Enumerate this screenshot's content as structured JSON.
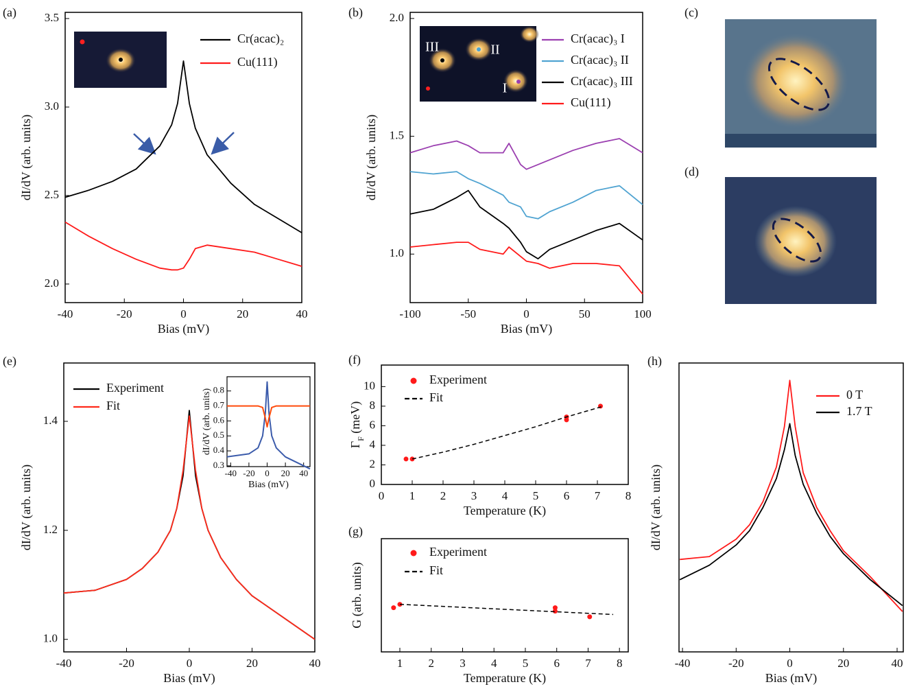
{
  "chart_data": [
    {
      "type": "line",
      "panel_label": "(a)",
      "xlabel": "Bias (mV)",
      "ylabel": "dI/dV (arb. units)",
      "xlim": [
        -40,
        40
      ],
      "ylim": [
        1.895,
        3.535
      ],
      "xticks": [
        -40,
        -20,
        0,
        20,
        40
      ],
      "yticks": [
        {
          "value": 2,
          "label": "2.0"
        },
        2.5,
        {
          "value": 3,
          "label": "3.0"
        },
        3.5
      ],
      "x": [
        -40,
        -32,
        -24,
        -16,
        -8,
        -4,
        -2,
        0,
        2,
        4,
        8,
        16,
        24,
        32,
        40
      ],
      "series": [
        {
          "name": "Cr(acac)₂",
          "color": "#000000",
          "values": [
            2.49,
            2.53,
            2.58,
            2.65,
            2.78,
            2.9,
            3.02,
            3.26,
            3.02,
            2.88,
            2.73,
            2.57,
            2.45,
            2.37,
            2.29
          ]
        },
        {
          "name": "Cu(111)",
          "color": "#ff1a1a",
          "values": [
            2.35,
            2.27,
            2.2,
            2.14,
            2.09,
            2.08,
            2.08,
            2.09,
            2.14,
            2.2,
            2.22,
            2.2,
            2.18,
            2.14,
            2.1
          ]
        }
      ]
    },
    {
      "type": "line",
      "panel_label": "(b)",
      "xlabel": "Bias (mV)",
      "ylabel": "dI/dV (arb. units)",
      "xlim": [
        -100,
        100
      ],
      "ylim": [
        0.794,
        2.026
      ],
      "xticks": [
        -100,
        -50,
        0,
        50,
        100
      ],
      "yticks": [
        {
          "value": 1,
          "label": "1.0"
        },
        1.5,
        {
          "value": 2,
          "label": "2.0"
        }
      ],
      "inset_labels": [
        "III",
        "II",
        "I"
      ],
      "x": [
        -100,
        -80,
        -60,
        -50,
        -40,
        -20,
        -15,
        -5,
        0,
        10,
        20,
        40,
        60,
        80,
        100
      ],
      "series": [
        {
          "name": "Cr(acac)₃ I",
          "color": "#9b3fb0",
          "values": [
            1.43,
            1.46,
            1.48,
            1.46,
            1.43,
            1.43,
            1.47,
            1.38,
            1.36,
            1.38,
            1.4,
            1.44,
            1.47,
            1.49,
            1.43
          ]
        },
        {
          "name": "Cr(acac)₃ II",
          "color": "#4fa3d1",
          "values": [
            1.35,
            1.34,
            1.35,
            1.32,
            1.3,
            1.25,
            1.22,
            1.2,
            1.16,
            1.15,
            1.18,
            1.22,
            1.27,
            1.29,
            1.21
          ]
        },
        {
          "name": "Cr(acac)₃ III",
          "color": "#000000",
          "values": [
            1.17,
            1.19,
            1.24,
            1.27,
            1.2,
            1.13,
            1.11,
            1.05,
            1.01,
            0.98,
            1.02,
            1.06,
            1.1,
            1.13,
            1.06
          ]
        },
        {
          "name": "Cu(111)",
          "color": "#ff1a1a",
          "values": [
            1.03,
            1.04,
            1.05,
            1.05,
            1.02,
            1.0,
            1.03,
            0.99,
            0.97,
            0.96,
            0.94,
            0.96,
            0.96,
            0.95,
            0.83
          ]
        }
      ]
    },
    {
      "type": "image",
      "panel_label": "(c)"
    },
    {
      "type": "image",
      "panel_label": "(d)"
    },
    {
      "type": "line",
      "panel_label": "(e)",
      "xlabel": "Bias (mV)",
      "ylabel": "dI/dV (arb. units)",
      "xlim": [
        -40,
        40
      ],
      "ylim": [
        0.977,
        1.507
      ],
      "xticks": [
        -40,
        -20,
        0,
        20,
        40
      ],
      "yticks": [
        {
          "value": 1,
          "label": "1.0"
        },
        1.2,
        1.4
      ],
      "x": [
        -40,
        -30,
        -20,
        -15,
        -10,
        -6,
        -4,
        -2,
        0,
        2,
        4,
        6,
        10,
        15,
        20,
        30,
        40
      ],
      "series": [
        {
          "name": "Experiment",
          "color": "#000000",
          "values": [
            1.085,
            1.09,
            1.11,
            1.13,
            1.16,
            1.2,
            1.24,
            1.3,
            1.42,
            1.3,
            1.24,
            1.2,
            1.15,
            1.11,
            1.08,
            1.04,
            1.0
          ]
        },
        {
          "name": "Fit",
          "color": "#ff2a1a",
          "values": [
            1.085,
            1.09,
            1.11,
            1.13,
            1.16,
            1.2,
            1.24,
            1.31,
            1.41,
            1.31,
            1.24,
            1.2,
            1.15,
            1.11,
            1.08,
            1.04,
            1.0
          ]
        }
      ]
    },
    {
      "type": "line",
      "xlabel": "Bias (mV)",
      "ylabel": "dI/dV (arb. units)",
      "xlim": [
        -44,
        47
      ],
      "ylim": [
        0.295,
        0.895
      ],
      "xticks": [
        -40,
        -20,
        0,
        20,
        40
      ],
      "yticks": [
        0.3,
        0.4,
        0.5,
        0.6,
        0.7,
        0.8
      ],
      "x": [
        -44,
        -20,
        -10,
        -5,
        -2,
        0,
        2,
        5,
        10,
        20,
        47
      ],
      "series": [
        {
          "color": "#3b5bab",
          "values": [
            0.36,
            0.38,
            0.42,
            0.5,
            0.65,
            0.86,
            0.65,
            0.5,
            0.42,
            0.36,
            0.28
          ]
        },
        {
          "color": "#ff4a0a",
          "values": [
            0.7,
            0.7,
            0.7,
            0.69,
            0.62,
            0.56,
            0.62,
            0.69,
            0.7,
            0.7,
            0.7
          ]
        }
      ]
    },
    {
      "type": "scatter",
      "panel_label": "(f)",
      "xlabel": "Temperature (K)",
      "ylabel": [
        "Γ",
        "F",
        " (meV)"
      ],
      "xlim": [
        0,
        8
      ],
      "ylim": [
        0,
        12.2
      ],
      "xticks": [
        0,
        1,
        2,
        3,
        4,
        5,
        6,
        7,
        8
      ],
      "yticks": [
        0,
        2,
        4,
        6,
        8,
        10
      ],
      "series": [
        {
          "name": "Experiment",
          "color": "#ff1a1a",
          "style": "markers",
          "x": [
            0.8,
            1.0,
            6.0,
            6.0,
            7.1
          ],
          "values": [
            2.6,
            2.6,
            6.6,
            6.9,
            8.0
          ]
        },
        {
          "name": "Fit",
          "color": "#000000",
          "style": "dashed",
          "x": [
            1,
            2,
            3,
            4,
            5,
            6,
            7.2
          ],
          "values": [
            2.6,
            3.3,
            4.1,
            5.0,
            5.9,
            6.9,
            8.0
          ]
        }
      ]
    },
    {
      "type": "scatter",
      "panel_label": "(g)",
      "xlabel": "Temperature (K)",
      "ylabel": "G (arb. units)",
      "xlim": [
        0.41,
        8.28
      ],
      "ylim": [
        0,
        1
      ],
      "xticks": [
        1,
        2,
        3,
        4,
        5,
        6,
        7,
        8
      ],
      "series": [
        {
          "name": "Experiment",
          "color": "#ff1a1a",
          "style": "markers",
          "x": [
            0.8,
            1.0,
            5.95,
            5.95,
            7.05
          ],
          "values": [
            0.39,
            0.42,
            0.39,
            0.36,
            0.31
          ]
        },
        {
          "name": "Fit",
          "color": "#000000",
          "style": "dashed",
          "x": [
            1,
            7.8
          ],
          "values": [
            0.42,
            0.33
          ]
        }
      ]
    },
    {
      "type": "line",
      "panel_label": "(h)",
      "xlabel": "Bias (mV)",
      "ylabel": "dI/dV (arb. units)",
      "xlim": [
        -41.3,
        42.3
      ],
      "ylim": [
        0,
        1
      ],
      "xticks": [
        -40,
        -20,
        0,
        20,
        40
      ],
      "x": [
        -41,
        -30,
        -20,
        -15,
        -10,
        -5,
        -2,
        0,
        2,
        5,
        10,
        15,
        20,
        30,
        42
      ],
      "series": [
        {
          "name": "0 T",
          "color": "#ff1a1a",
          "values": [
            0.32,
            0.33,
            0.39,
            0.44,
            0.52,
            0.64,
            0.78,
            0.94,
            0.78,
            0.62,
            0.5,
            0.42,
            0.35,
            0.26,
            0.14
          ]
        },
        {
          "name": "1.7 T",
          "color": "#000000",
          "values": [
            0.25,
            0.3,
            0.37,
            0.42,
            0.5,
            0.6,
            0.7,
            0.79,
            0.68,
            0.58,
            0.48,
            0.4,
            0.34,
            0.25,
            0.16
          ]
        }
      ]
    }
  ]
}
